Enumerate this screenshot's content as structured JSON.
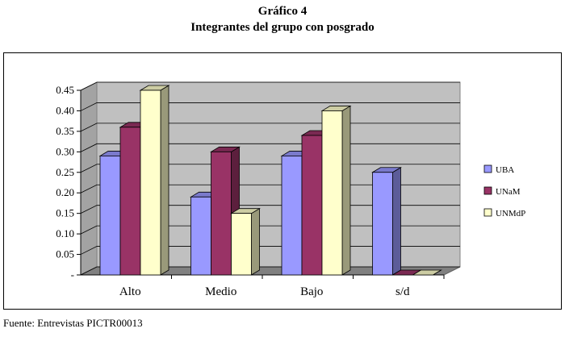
{
  "chart_data": {
    "type": "bar3d",
    "title": "Gráfico 4",
    "subtitle": "Integrantes del grupo con posgrado",
    "source": "Fuente: Entrevistas PICTR00013",
    "categories": [
      "Alto",
      "Medio",
      "Bajo",
      "s/d"
    ],
    "series": [
      {
        "name": "UBA",
        "color": "#9999ff",
        "values": [
          0.29,
          0.19,
          0.29,
          0.25
        ]
      },
      {
        "name": "UNaM",
        "color": "#993366",
        "values": [
          0.36,
          0.3,
          0.34,
          0
        ]
      },
      {
        "name": "UNMdP",
        "color": "#ffffcc",
        "values": [
          0.45,
          0.15,
          0.4,
          0
        ]
      }
    ],
    "ylim": [
      0,
      0.45
    ],
    "yticks": [
      {
        "value": 0,
        "label": "-"
      },
      0.05,
      {
        "value": 0.1,
        "label": "0.10"
      },
      0.15,
      {
        "value": 0.2,
        "label": "0.20"
      },
      0.25,
      {
        "value": 0.3,
        "label": "0.30"
      },
      0.35,
      {
        "value": 0.4,
        "label": "0.40"
      },
      0.45
    ],
    "grid": true,
    "legend": "right",
    "wall_color": "#c0c0c0"
  }
}
